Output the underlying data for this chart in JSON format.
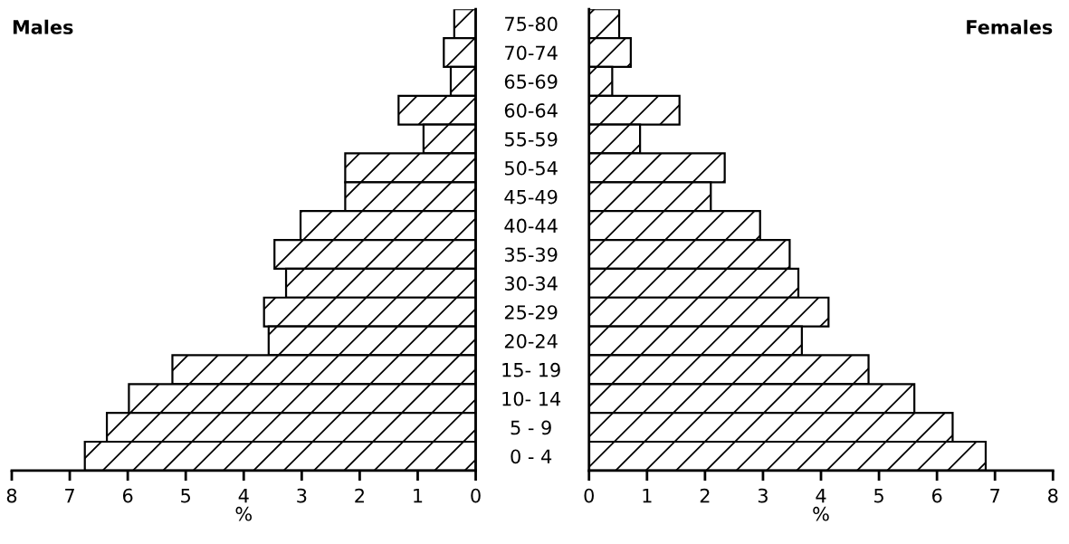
{
  "chart_data": [
    {
      "type": "bar",
      "orientation": "horizontal",
      "title": "Males",
      "xlabel": "%",
      "categories": [
        "75-80",
        "70-74",
        "65-69",
        "60-64",
        "55-59",
        "50-54",
        "45-49",
        "40-44",
        "35-39",
        "30-34",
        "25-29",
        "20-24",
        "15- 19",
        "10- 14",
        "5 - 9",
        "0 - 4"
      ],
      "values": [
        0.37,
        0.55,
        0.43,
        1.33,
        0.9,
        2.25,
        2.25,
        3.02,
        3.47,
        3.27,
        3.65,
        3.57,
        5.23,
        5.98,
        6.36,
        6.74
      ],
      "color": "#000000",
      "xlim": [
        8,
        0
      ],
      "xticks": [
        8,
        7,
        6,
        5,
        4,
        3,
        2,
        1,
        0
      ],
      "grid": false,
      "legend": false
    },
    {
      "type": "bar",
      "orientation": "horizontal",
      "title": "Females",
      "xlabel": "%",
      "tick_labels": "x",
      "categories": [
        null,
        null,
        null,
        null,
        null,
        null,
        null,
        null,
        null,
        null,
        null,
        null,
        null,
        null,
        null,
        null
      ],
      "values": [
        0.52,
        0.72,
        0.4,
        1.56,
        0.88,
        2.34,
        2.1,
        2.95,
        3.46,
        3.61,
        4.13,
        3.67,
        4.82,
        5.61,
        6.27,
        6.84
      ],
      "color": "#000000",
      "xlim": [
        0,
        8
      ],
      "xticks": [
        0,
        1,
        2,
        3,
        4,
        5,
        6,
        7,
        8
      ],
      "grid": false,
      "legend": false
    }
  ]
}
